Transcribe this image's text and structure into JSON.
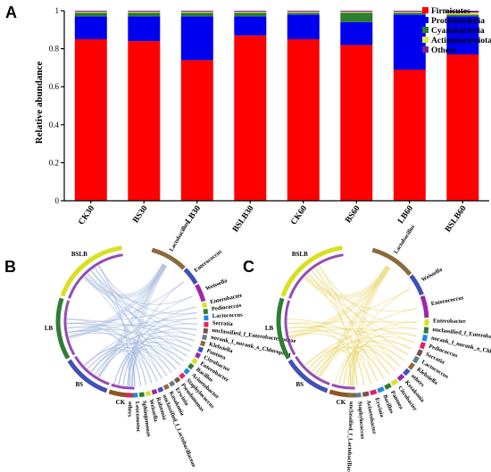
{
  "panels": {
    "a": "A",
    "b": "B",
    "c": "C"
  },
  "colors": {
    "Firmicutes": "#ff0000",
    "Proteobacteria": "#0000ee",
    "Cyanobacteria": "#2e7d32",
    "Actinobacteriota": "#e8e84a",
    "Others": "#7b1fa2"
  },
  "chart_data": [
    {
      "type": "bar",
      "stacked": true,
      "ylabel": "Relative abundance",
      "ylim": [
        0,
        1
      ],
      "yticks": [
        "0",
        "0.2",
        "0.4",
        "0.6",
        "0.8",
        "1"
      ],
      "categories": [
        "CK30",
        "BS30",
        "LB30",
        "BSLB30",
        "CK60",
        "BS60",
        "LB60",
        "BSLB60"
      ],
      "legend_position": "top-right",
      "series": [
        {
          "name": "Firmicutes",
          "values": [
            0.85,
            0.84,
            0.74,
            0.87,
            0.85,
            0.82,
            0.69,
            0.77
          ]
        },
        {
          "name": "Proteobacteria",
          "values": [
            0.12,
            0.13,
            0.23,
            0.1,
            0.13,
            0.12,
            0.29,
            0.2
          ]
        },
        {
          "name": "Cyanobacteria",
          "values": [
            0.02,
            0.02,
            0.02,
            0.02,
            0.01,
            0.05,
            0.01,
            0.01
          ]
        },
        {
          "name": "Actinobacteriota",
          "values": [
            0.005,
            0.005,
            0.005,
            0.005,
            0.005,
            0.005,
            0.005,
            0.01
          ]
        },
        {
          "name": "Others",
          "values": [
            0.005,
            0.005,
            0.005,
            0.005,
            0.005,
            0.005,
            0.005,
            0.01
          ]
        }
      ]
    },
    {
      "type": "chord",
      "panel": "B",
      "groups": [
        "BSLB",
        "LB",
        "BS",
        "CK"
      ],
      "taxa": [
        "Lactobacillus",
        "Enterococcus",
        "Weissella",
        "Enterobacter",
        "Pediococcus",
        "Lactococcus",
        "Serratia",
        "unclassified_f_Enterobacteriaceae",
        "norank_f_norank_o_Chloroplast",
        "Klebsiella",
        "Pantoea",
        "Citrobacter",
        "Enterobacter",
        "Bacillus",
        "Acinetobacter",
        "Staphylococcus",
        "Pseudomonas",
        "Erwinia",
        "Kosakonia",
        "unclassified_f_Lactobacillaceae",
        "Ralstonia",
        "Weissella",
        "Sphingomonas",
        "Leuconostoc",
        "others"
      ]
    },
    {
      "type": "chord",
      "panel": "C",
      "groups": [
        "BSLB",
        "LB",
        "BS",
        "CK"
      ],
      "taxa": [
        "Lactobacillus",
        "Weissella",
        "Enterococcus",
        "Enterobacter",
        "unclassified_f_Enterobacteriaceae",
        "norank_f_norank_o_Chloroplast",
        "Pediococcus",
        "Serratia",
        "Lactococcus",
        "Klebsiella",
        "others",
        "Kosakonia",
        "Citrobacter",
        "Pantoea",
        "Bacillus",
        "Erwinia",
        "Acinetobacter",
        "Staphylococcus",
        "unclassified_f_Lactobacillaceae"
      ]
    }
  ]
}
